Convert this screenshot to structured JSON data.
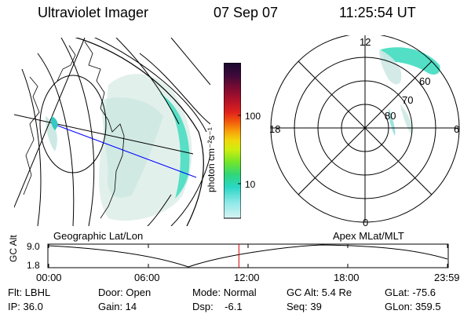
{
  "header": {
    "instrument": "Ultraviolet Imager",
    "date": "07 Sep 07",
    "time": "11:25:54 UT"
  },
  "geo_panel": {
    "label": "Geographic Lat/Lon"
  },
  "apex_panel": {
    "label": "Apex  MLat/MLT",
    "mlt_labels": {
      "top": "12",
      "bottom": "0",
      "left": "18",
      "right": "6"
    },
    "lat_labels": [
      "60",
      "70",
      "80"
    ]
  },
  "colorbar": {
    "unit_label": "photon cm⁻²s⁻¹",
    "ticks": [
      "100",
      "10"
    ],
    "colors": [
      "#1a0a2e",
      "#3d0a3a",
      "#7a0b33",
      "#b0122a",
      "#e0231d",
      "#f25a0a",
      "#f7a00a",
      "#f0d70c",
      "#cdee10",
      "#72e52a",
      "#2fd67a",
      "#2ad7c6",
      "#8fe8e8",
      "#d8f4f4"
    ]
  },
  "timeline": {
    "ylabel": "GC Alt",
    "y_top": "9.0",
    "y_bottom": "1.8",
    "ticks": [
      "00:00",
      "06:00",
      "12:00",
      "18:00",
      "23:59"
    ],
    "current_fraction": 0.477
  },
  "info": {
    "flt": "Flt: LBHL",
    "ip": "IP: 36.0",
    "door": "Door: Open",
    "gain": "Gain: 14",
    "mode": "Mode: Normal",
    "dsp": "Dsp:    -6.1",
    "gcalt": "GC Alt: 5.4 Re",
    "seq": "Seq: 39",
    "glat": "GLat: -75.6",
    "glon": "GLon: 359.5"
  }
}
